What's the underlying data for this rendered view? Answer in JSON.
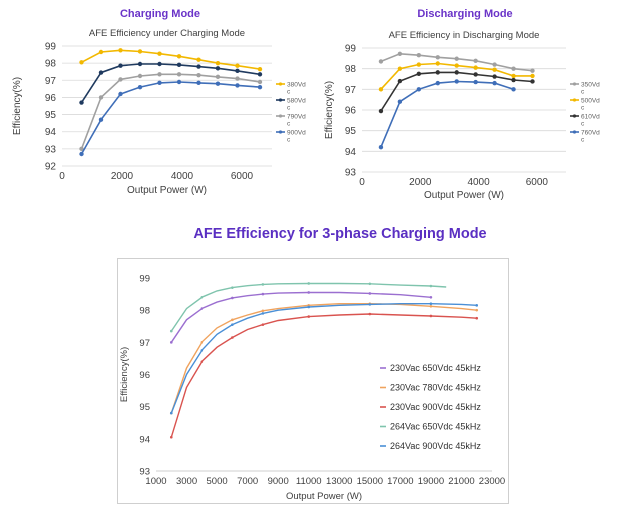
{
  "headings": {
    "left": "Charging Mode",
    "right": "Discharging Mode",
    "main": "AFE Efficiency for 3-phase Charging Mode"
  },
  "chart_data": [
    {
      "type": "line",
      "title": "AFE Efficiency under Charging Mode",
      "xlabel": "Output Power (W)",
      "ylabel": "Efficiency(%)",
      "xlim": [
        0,
        7000
      ],
      "ylim": [
        92,
        99
      ],
      "xticks": [
        "0",
        "2000",
        "4000",
        "6000"
      ],
      "yticks": [
        "92",
        "93",
        "94",
        "95",
        "96",
        "97",
        "98",
        "99"
      ],
      "grid": true,
      "legend": "right",
      "series": [
        {
          "name": "380Vdc",
          "legend_lines": [
            "380Vd",
            "c"
          ],
          "color": "#f2b800",
          "x": [
            650,
            1300,
            1950,
            2600,
            3250,
            3900,
            4550,
            5200,
            5850,
            6600
          ],
          "y": [
            98.05,
            98.65,
            98.75,
            98.68,
            98.55,
            98.4,
            98.2,
            98.0,
            97.85,
            97.65
          ]
        },
        {
          "name": "580Vdc",
          "legend_lines": [
            "580Vd",
            "c"
          ],
          "color": "#1f3a5f",
          "x": [
            650,
            1300,
            1950,
            2600,
            3250,
            3900,
            4550,
            5200,
            5850,
            6600
          ],
          "y": [
            95.7,
            97.45,
            97.85,
            97.95,
            97.95,
            97.9,
            97.8,
            97.7,
            97.55,
            97.35
          ]
        },
        {
          "name": "790Vdc",
          "legend_lines": [
            "790Vd",
            "c"
          ],
          "color": "#a0a0a0",
          "x": [
            650,
            1300,
            1950,
            2600,
            3250,
            3900,
            4550,
            5200,
            5850,
            6600
          ],
          "y": [
            93.0,
            96.0,
            97.05,
            97.25,
            97.35,
            97.35,
            97.3,
            97.2,
            97.1,
            96.9
          ]
        },
        {
          "name": "900Vdc",
          "legend_lines": [
            "900Vd",
            "c"
          ],
          "color": "#3f6eb8",
          "x": [
            650,
            1300,
            1950,
            2600,
            3250,
            3900,
            4550,
            5200,
            5850,
            6600
          ],
          "y": [
            92.7,
            94.7,
            96.2,
            96.6,
            96.85,
            96.9,
            96.85,
            96.8,
            96.7,
            96.6
          ]
        }
      ]
    },
    {
      "type": "line",
      "title": "AFE Efficiency in Discharging Mode",
      "xlabel": "Output Power (W)",
      "ylabel": "Efficiency(%)",
      "xlim": [
        0,
        7000
      ],
      "ylim": [
        93,
        99
      ],
      "xticks": [
        "0",
        "2000",
        "4000",
        "6000"
      ],
      "yticks": [
        "93",
        "94",
        "95",
        "96",
        "97",
        "98",
        "99"
      ],
      "grid": true,
      "legend": "right",
      "series": [
        {
          "name": "350Vdc",
          "legend_lines": [
            "350Vd",
            "c"
          ],
          "color": "#a0a0a0",
          "x": [
            650,
            1300,
            1950,
            2600,
            3250,
            3900,
            4550,
            5200,
            5850
          ],
          "y": [
            98.35,
            98.72,
            98.65,
            98.55,
            98.48,
            98.38,
            98.2,
            98.0,
            97.9
          ]
        },
        {
          "name": "500Vdc",
          "legend_lines": [
            "500Vd",
            "c"
          ],
          "color": "#f2b800",
          "x": [
            650,
            1300,
            1950,
            2600,
            3250,
            3900,
            4550,
            5200,
            5850
          ],
          "y": [
            97.0,
            98.0,
            98.2,
            98.25,
            98.15,
            98.05,
            97.95,
            97.65,
            97.65
          ]
        },
        {
          "name": "610Vdc",
          "legend_lines": [
            "610Vd",
            "c"
          ],
          "color": "#333333",
          "x": [
            650,
            1300,
            1950,
            2600,
            3250,
            3900,
            4550,
            5200,
            5850
          ],
          "y": [
            95.95,
            97.4,
            97.75,
            97.82,
            97.82,
            97.72,
            97.62,
            97.45,
            97.38
          ]
        },
        {
          "name": "760Vdc",
          "legend_lines": [
            "760Vd",
            "c"
          ],
          "color": "#3f6eb8",
          "x": [
            650,
            1300,
            1950,
            2600,
            3250,
            3900,
            4550,
            5200
          ],
          "y": [
            94.2,
            96.4,
            97.0,
            97.3,
            97.38,
            97.35,
            97.3,
            97.0
          ]
        }
      ]
    },
    {
      "type": "line",
      "title": "AFE Efficiency for 3-phase Charging Mode",
      "xlabel": "Output Power (W)",
      "ylabel": "Efficiency(%)",
      "xlim": [
        1000,
        23000
      ],
      "ylim": [
        93,
        99
      ],
      "xticks": [
        "1000",
        "3000",
        "5000",
        "7000",
        "9000",
        "11000",
        "13000",
        "15000",
        "17000",
        "19000",
        "21000",
        "23000"
      ],
      "yticks": [
        "93",
        "94",
        "95",
        "96",
        "97",
        "98",
        "99"
      ],
      "grid": false,
      "legend": "center-right",
      "series": [
        {
          "name": "230Vac 650Vdc 45kHz",
          "color": "#9b6fd0",
          "x": [
            2000,
            3000,
            4000,
            5000,
            6000,
            7000,
            8000,
            9000,
            11000,
            13000,
            15000,
            17000,
            19000
          ],
          "y": [
            97.0,
            97.7,
            98.05,
            98.25,
            98.38,
            98.45,
            98.5,
            98.53,
            98.55,
            98.55,
            98.52,
            98.48,
            98.4
          ]
        },
        {
          "name": "230Vac 780Vdc 45kHz",
          "color": "#f0a35e",
          "x": [
            2000,
            3000,
            4000,
            5000,
            6000,
            7000,
            8000,
            9000,
            11000,
            13000,
            15000,
            17000,
            19000,
            21000,
            22000
          ],
          "y": [
            94.8,
            96.2,
            97.0,
            97.45,
            97.7,
            97.85,
            97.98,
            98.05,
            98.15,
            98.2,
            98.2,
            98.18,
            98.12,
            98.05,
            98.0
          ]
        },
        {
          "name": "230Vac 900Vdc 45kHz",
          "color": "#d9534f",
          "x": [
            2000,
            3000,
            4000,
            5000,
            6000,
            7000,
            8000,
            9000,
            11000,
            13000,
            15000,
            17000,
            19000,
            21000,
            22000
          ],
          "y": [
            94.05,
            95.6,
            96.4,
            96.85,
            97.15,
            97.4,
            97.55,
            97.68,
            97.8,
            97.85,
            97.88,
            97.85,
            97.82,
            97.78,
            97.75
          ]
        },
        {
          "name": "264Vac 650Vdc 45kHz",
          "color": "#7fc4ad",
          "x": [
            2000,
            3000,
            4000,
            5000,
            6000,
            7000,
            8000,
            9000,
            11000,
            13000,
            15000,
            17000,
            19000,
            20000
          ],
          "y": [
            97.35,
            98.05,
            98.4,
            98.6,
            98.7,
            98.76,
            98.8,
            98.82,
            98.83,
            98.83,
            98.82,
            98.78,
            98.75,
            98.72
          ]
        },
        {
          "name": "264Vac 900Vdc 45kHz",
          "color": "#4a8fd6",
          "x": [
            2000,
            3000,
            4000,
            5000,
            6000,
            7000,
            8000,
            9000,
            11000,
            13000,
            15000,
            17000,
            19000,
            21000,
            22000
          ],
          "y": [
            94.8,
            96.0,
            96.75,
            97.25,
            97.55,
            97.75,
            97.9,
            98.0,
            98.1,
            98.15,
            98.18,
            98.2,
            98.2,
            98.18,
            98.15
          ]
        }
      ]
    }
  ]
}
